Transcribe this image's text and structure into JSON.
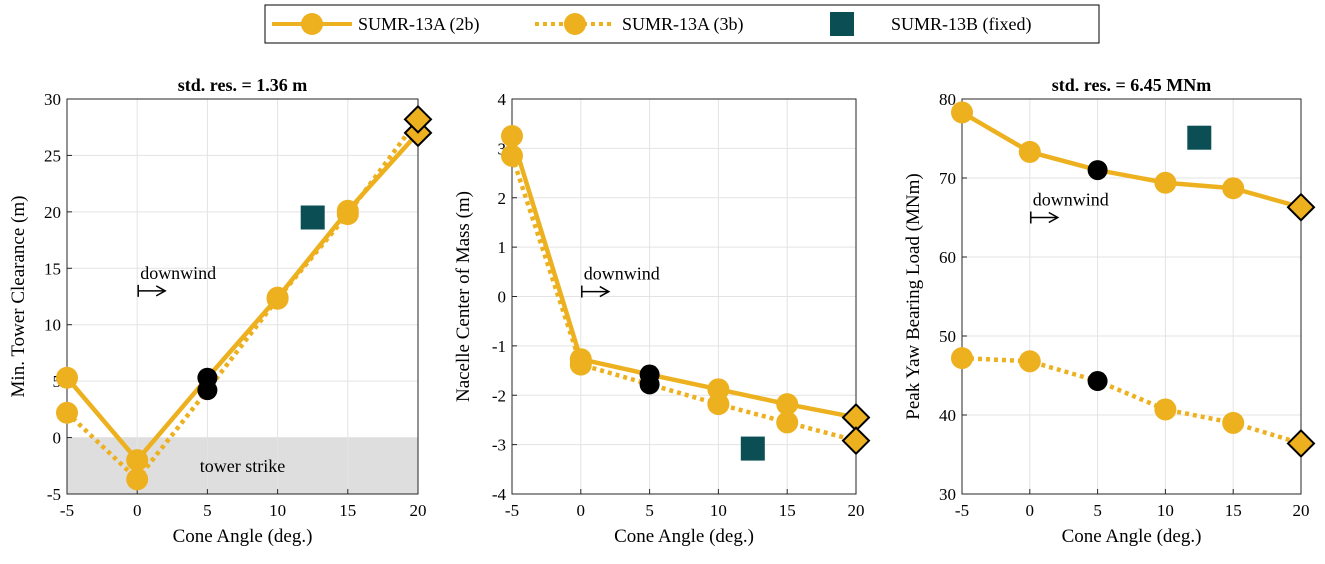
{
  "colors": {
    "series_2b": "#EDB120",
    "series_3b": "#EDB120",
    "fixed": "#0B4F55",
    "highlight_point": "#000000",
    "grid": "#e3e3e3",
    "strike_region": "#dedede"
  },
  "legend": {
    "entries": [
      {
        "label": "SUMR-13A (2b)",
        "style": "solid-line-circle"
      },
      {
        "label": "SUMR-13A (3b)",
        "style": "dotted-line-circle"
      },
      {
        "label": "SUMR-13B (fixed)",
        "style": "square"
      }
    ],
    "placement": "top-center"
  },
  "chart_data": [
    {
      "type": "line",
      "title": "std. res. = 1.36 m",
      "xlabel": "Cone Angle (deg.)",
      "ylabel": "Min. Tower Clearance (m)",
      "xlim": [
        -5,
        20
      ],
      "ylim": [
        -5,
        30
      ],
      "xticks": [
        "-5",
        "0",
        "5",
        "10",
        "15",
        "20"
      ],
      "yticks": [
        "-5",
        "0",
        "5",
        "10",
        "15",
        "20",
        "25",
        "30"
      ],
      "grid": true,
      "x": [
        -5,
        0,
        5,
        10,
        15,
        20
      ],
      "series": [
        {
          "name": "SUMR-13A (2b)",
          "values": [
            5.3,
            -2.0,
            5.3,
            12.4,
            20.1,
            27.0
          ]
        },
        {
          "name": "SUMR-13A (3b)",
          "values": [
            2.2,
            -3.7,
            4.2,
            12.3,
            19.8,
            28.2
          ]
        }
      ],
      "fixed_point": {
        "name": "SUMR-13B (fixed)",
        "x": 12.5,
        "y": 19.5
      },
      "highlight_x": 5,
      "end_marker": "diamond",
      "annotations": [
        {
          "text": "downwind",
          "x": 0,
          "y": 13,
          "arrow": true
        },
        {
          "text": "tower strike",
          "x": 7.5,
          "y": -2.5
        }
      ],
      "shaded_region": {
        "y_from": -5,
        "y_to": 0
      }
    },
    {
      "type": "line",
      "title": "",
      "xlabel": "Cone Angle (deg.)",
      "ylabel": "Nacelle Center of Mass (m)",
      "xlim": [
        -5,
        20
      ],
      "ylim": [
        -4,
        4
      ],
      "xticks": [
        "-5",
        "0",
        "5",
        "10",
        "15",
        "20"
      ],
      "yticks": [
        "-4",
        "-3",
        "-2",
        "-1",
        "0",
        "1",
        "2",
        "3",
        "4"
      ],
      "grid": true,
      "x": [
        -5,
        0,
        5,
        10,
        15,
        20
      ],
      "series": [
        {
          "name": "SUMR-13A (2b)",
          "values": [
            3.25,
            -1.27,
            -1.58,
            -1.88,
            -2.18,
            -2.45
          ]
        },
        {
          "name": "SUMR-13A (3b)",
          "values": [
            2.85,
            -1.38,
            -1.78,
            -2.18,
            -2.55,
            -2.92
          ]
        }
      ],
      "fixed_point": {
        "name": "SUMR-13B (fixed)",
        "x": 12.5,
        "y": -3.08
      },
      "highlight_x": 5,
      "end_marker": "diamond",
      "annotations": [
        {
          "text": "downwind",
          "x": 0,
          "y": 0.1,
          "arrow": true
        }
      ]
    },
    {
      "type": "line",
      "title": "std. res. = 6.45 MNm",
      "xlabel": "Cone Angle (deg.)",
      "ylabel": "Peak Yaw Bearing Load (MNm)",
      "xlim": [
        -5,
        20
      ],
      "ylim": [
        30,
        80
      ],
      "xticks": [
        "-5",
        "0",
        "5",
        "10",
        "15",
        "20"
      ],
      "yticks": [
        "30",
        "40",
        "50",
        "60",
        "70",
        "80"
      ],
      "grid": true,
      "x": [
        -5,
        0,
        5,
        10,
        15,
        20
      ],
      "series": [
        {
          "name": "SUMR-13A (2b)",
          "values": [
            78.3,
            73.3,
            71.0,
            69.4,
            68.7,
            66.3
          ]
        },
        {
          "name": "SUMR-13A (3b)",
          "values": [
            47.2,
            46.8,
            44.3,
            40.7,
            39.0,
            36.4
          ]
        }
      ],
      "fixed_point": {
        "name": "SUMR-13B (fixed)",
        "x": 12.5,
        "y": 75.1
      },
      "highlight_x": 5,
      "end_marker": "diamond",
      "annotations": [
        {
          "text": "downwind",
          "x": 0,
          "y": 65,
          "arrow": true
        }
      ]
    }
  ]
}
